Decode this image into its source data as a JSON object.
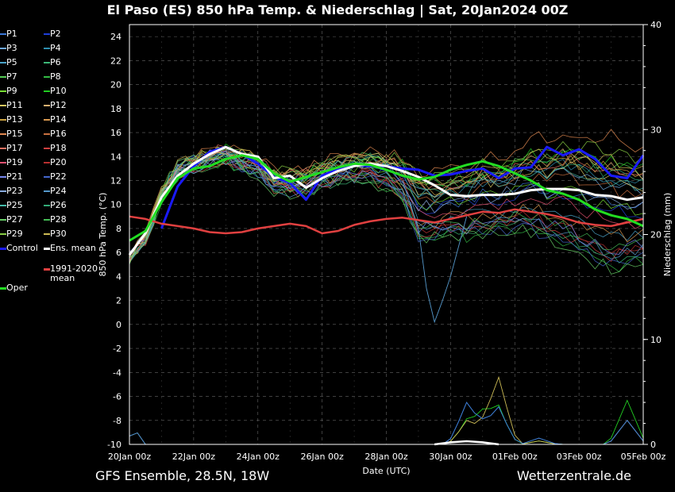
{
  "title": "El Paso  (ES)  850 hPa Temp. & Niederschlag | Sat, 20Jan2024 00Z",
  "footer": {
    "model": "GFS Ensemble, 28.5N, 18W",
    "source": "Wetterzentrale.de"
  },
  "colors": {
    "background": "#000000",
    "control": "#1a1aff",
    "ens_mean": "#ffffff",
    "climate_mean": "#e04040",
    "oper": "#22dd22"
  },
  "legend": [
    {
      "label": "P1",
      "color": "#3b78d8"
    },
    {
      "label": "P2",
      "color": "#1f3fd8"
    },
    {
      "label": "P3",
      "color": "#6fa8dc"
    },
    {
      "label": "P4",
      "color": "#2e8fb0"
    },
    {
      "label": "P5",
      "color": "#4aa3c8"
    },
    {
      "label": "P6",
      "color": "#3cb878"
    },
    {
      "label": "P7",
      "color": "#55cc55"
    },
    {
      "label": "P8",
      "color": "#33bb44"
    },
    {
      "label": "P9",
      "color": "#77dd33"
    },
    {
      "label": "P10",
      "color": "#22cc22"
    },
    {
      "label": "P11",
      "color": "#d8c860"
    },
    {
      "label": "P12",
      "color": "#e0b070"
    },
    {
      "label": "P13",
      "color": "#c8a040"
    },
    {
      "label": "P14",
      "color": "#d89850"
    },
    {
      "label": "P15",
      "color": "#e08850"
    },
    {
      "label": "P16",
      "color": "#c87040"
    },
    {
      "label": "P17",
      "color": "#e07060"
    },
    {
      "label": "P18",
      "color": "#d04040"
    },
    {
      "label": "P19",
      "color": "#e05070"
    },
    {
      "label": "P20",
      "color": "#b83030"
    },
    {
      "label": "P21",
      "color": "#7788ee"
    },
    {
      "label": "P22",
      "color": "#4466cc"
    },
    {
      "label": "P23",
      "color": "#88aadd"
    },
    {
      "label": "P24",
      "color": "#5599cc"
    },
    {
      "label": "P25",
      "color": "#44bbaa"
    },
    {
      "label": "P26",
      "color": "#33aa77"
    },
    {
      "label": "P27",
      "color": "#66cc66"
    },
    {
      "label": "P28",
      "color": "#44bb55"
    },
    {
      "label": "P29",
      "color": "#88cc44"
    },
    {
      "label": "P30",
      "color": "#ccbb55"
    },
    {
      "label": "Control",
      "color": "#1a1aff"
    },
    {
      "label": "Ens. mean",
      "color": "#ffffff"
    },
    {
      "label": "1991-2020 mean",
      "color": "#e04040"
    },
    {
      "label": "Oper",
      "color": "#22dd22"
    }
  ],
  "chart_data": {
    "type": "line",
    "title": "El Paso  (ES)  850 hPa Temp. & Niederschlag | Sat, 20Jan2024 00Z",
    "xlabel": "Date (UTC)",
    "ylabel": "850 hPa Temp. (°C)",
    "ylabel_right": "Niederschlag (mm)",
    "xlim": [
      0,
      384
    ],
    "ylim": [
      -10,
      25
    ],
    "ylim_right": [
      0,
      40
    ],
    "x_unit": "hours since 20Jan 00Z",
    "xticks": [
      {
        "h": 0,
        "label": "20Jan 00z"
      },
      {
        "h": 48,
        "label": "22Jan 00z"
      },
      {
        "h": 96,
        "label": "24Jan 00z"
      },
      {
        "h": 144,
        "label": "26Jan 00z"
      },
      {
        "h": 192,
        "label": "28Jan 00z"
      },
      {
        "h": 240,
        "label": "30Jan 00z"
      },
      {
        "h": 288,
        "label": "01Feb 00z"
      },
      {
        "h": 336,
        "label": "03Feb 00z"
      },
      {
        "h": 384,
        "label": "05Feb 00z"
      }
    ],
    "yticks": [
      24,
      22,
      20,
      18,
      16,
      14,
      12,
      10,
      8,
      6,
      4,
      2,
      0,
      -2,
      -4,
      -6,
      -8,
      -10
    ],
    "yticks_right": [
      40,
      30,
      20,
      10,
      0
    ],
    "grid": true,
    "series": [
      {
        "name": "Control",
        "role": "control",
        "x": [
          24,
          36,
          48,
          60,
          72,
          84,
          96,
          108,
          120,
          132,
          144,
          156,
          168,
          180,
          192,
          204,
          216,
          228,
          240,
          252,
          264,
          276,
          288,
          300,
          312,
          324,
          336,
          348,
          360,
          372,
          384
        ],
        "y": [
          8.0,
          11.5,
          13.2,
          14.4,
          14.8,
          14.2,
          13.4,
          12.3,
          11.8,
          10.4,
          12.4,
          13.0,
          13.3,
          13.2,
          13.2,
          13.0,
          12.9,
          12.4,
          12.5,
          12.8,
          13.0,
          12.2,
          13.0,
          13.1,
          14.8,
          14.1,
          14.6,
          13.8,
          12.4,
          12.2,
          14.1
        ]
      },
      {
        "name": "Ens. mean",
        "role": "mean",
        "x": [
          0,
          12,
          24,
          36,
          48,
          60,
          72,
          84,
          96,
          108,
          120,
          132,
          144,
          156,
          168,
          180,
          192,
          204,
          216,
          228,
          240,
          252,
          264,
          276,
          288,
          300,
          312,
          324,
          336,
          348,
          360,
          372,
          384
        ],
        "y": [
          5.8,
          7.6,
          10.6,
          12.4,
          13.4,
          14.2,
          14.8,
          14.2,
          14.0,
          12.2,
          12.4,
          11.4,
          12.2,
          12.8,
          13.2,
          13.4,
          13.2,
          12.8,
          12.3,
          11.6,
          10.8,
          10.7,
          10.8,
          10.8,
          10.9,
          11.2,
          11.3,
          11.3,
          11.2,
          10.8,
          10.7,
          10.4,
          10.6
        ]
      },
      {
        "name": "1991-2020 mean",
        "role": "climate",
        "x": [
          0,
          12,
          24,
          36,
          48,
          60,
          72,
          84,
          96,
          108,
          120,
          132,
          144,
          156,
          168,
          180,
          192,
          204,
          216,
          228,
          240,
          252,
          264,
          276,
          288,
          300,
          312,
          324,
          336,
          348,
          360,
          372,
          384
        ],
        "y": [
          9.0,
          8.8,
          8.4,
          8.2,
          8.0,
          7.7,
          7.6,
          7.7,
          8.0,
          8.2,
          8.4,
          8.2,
          7.6,
          7.8,
          8.3,
          8.6,
          8.8,
          8.9,
          8.7,
          8.5,
          8.8,
          9.1,
          9.4,
          9.3,
          9.6,
          9.4,
          9.2,
          8.9,
          8.5,
          8.3,
          8.2,
          8.5,
          8.8
        ]
      },
      {
        "name": "Oper",
        "role": "oper",
        "x": [
          0,
          12,
          24,
          36,
          48,
          60,
          72,
          84,
          96,
          108,
          120,
          132,
          144,
          156,
          168,
          180,
          192,
          204,
          216,
          228,
          240,
          252,
          264,
          276,
          288,
          300,
          312,
          324,
          336,
          348,
          360,
          372,
          384
        ],
        "y": [
          7.0,
          7.8,
          10.2,
          12.2,
          13.0,
          13.2,
          13.8,
          14.1,
          13.8,
          12.6,
          11.9,
          12.3,
          12.7,
          13.1,
          13.4,
          13.3,
          12.9,
          12.4,
          12.1,
          12.3,
          12.9,
          13.3,
          13.6,
          13.2,
          12.6,
          12.0,
          11.2,
          10.9,
          10.4,
          9.6,
          9.1,
          8.8,
          8.2
        ]
      }
    ],
    "ensemble_spread": {
      "upper": [
        6.2,
        8.4,
        12.8,
        15.2,
        15.8,
        16.2,
        16.6,
        16.0,
        15.6,
        14.6,
        14.6,
        14.2,
        14.8,
        15.2,
        15.4,
        15.6,
        15.6,
        15.2,
        14.8,
        14.4,
        14.6,
        14.6,
        15.4,
        15.2,
        15.8,
        16.8,
        16.4,
        17.2,
        16.8,
        16.4,
        16.4,
        15.2,
        14.8
      ],
      "lower": [
        5.0,
        6.0,
        9.0,
        10.6,
        11.2,
        11.6,
        12.0,
        11.4,
        11.2,
        9.4,
        9.2,
        9.8,
        10.4,
        10.6,
        11.0,
        10.8,
        10.2,
        9.2,
        5.4,
        5.6,
        6.2,
        6.0,
        6.4,
        6.4,
        6.8,
        6.6,
        6.2,
        5.8,
        5.2,
        4.6,
        4.2,
        4.6,
        5.0
      ]
    },
    "precip_peaks_mm": [
      {
        "h": 252,
        "v": 3.8
      },
      {
        "h": 264,
        "v": 2.6
      },
      {
        "h": 276,
        "v": 6.2
      },
      {
        "h": 306,
        "v": 0.6
      },
      {
        "h": 372,
        "v": 4.2
      }
    ]
  }
}
